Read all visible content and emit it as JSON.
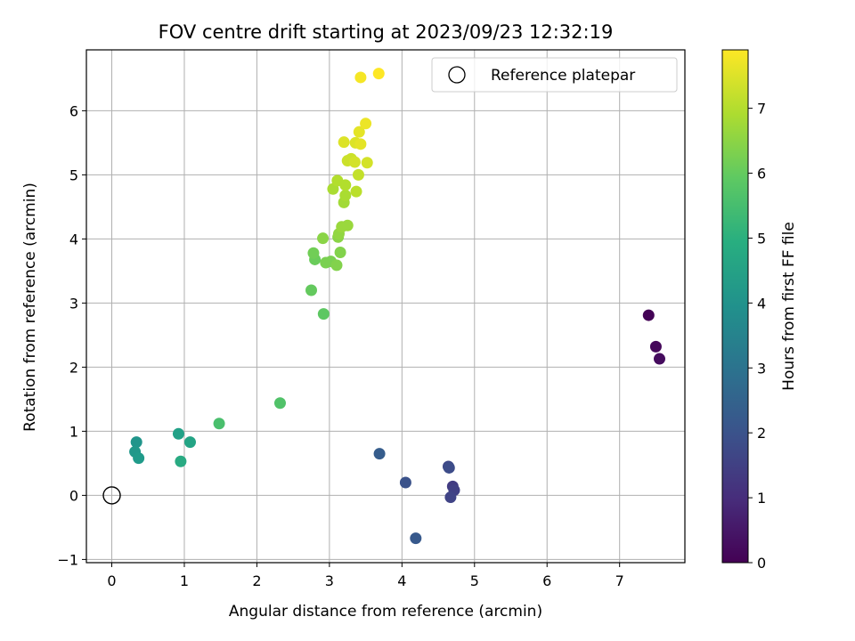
{
  "chart_data": {
    "type": "scatter",
    "title": "FOV centre drift starting at 2023/09/23 12:32:19",
    "xlabel": "Angular distance from reference (arcmin)",
    "ylabel": "Rotation from reference (arcmin)",
    "xlim": [
      -0.35,
      7.9
    ],
    "ylim": [
      -1.05,
      6.95
    ],
    "xticks": [
      0,
      1,
      2,
      3,
      4,
      5,
      6,
      7
    ],
    "yticks": [
      -1,
      0,
      1,
      2,
      3,
      4,
      5,
      6
    ],
    "grid": true,
    "legend": {
      "position": "top-right",
      "entries": [
        "Reference platepar"
      ]
    },
    "reference_point": {
      "x": 0,
      "y": 0,
      "marker": "hollow-circle",
      "label": "Reference platepar"
    },
    "colorbar": {
      "label": "Hours from first FF file",
      "colormap": "viridis",
      "range": [
        0,
        7.9
      ],
      "ticks": [
        0,
        1,
        2,
        3,
        4,
        5,
        6,
        7
      ]
    },
    "points": [
      {
        "x": 7.4,
        "y": 2.81,
        "c": 0.05
      },
      {
        "x": 7.5,
        "y": 2.32,
        "c": 0.15
      },
      {
        "x": 7.55,
        "y": 2.13,
        "c": 0.25
      },
      {
        "x": 4.7,
        "y": 0.14,
        "c": 1.4
      },
      {
        "x": 4.72,
        "y": 0.08,
        "c": 1.5
      },
      {
        "x": 4.67,
        "y": -0.03,
        "c": 1.6
      },
      {
        "x": 4.64,
        "y": 0.45,
        "c": 1.7
      },
      {
        "x": 4.65,
        "y": 0.43,
        "c": 1.8
      },
      {
        "x": 4.05,
        "y": 0.2,
        "c": 2.0
      },
      {
        "x": 4.19,
        "y": -0.67,
        "c": 2.2
      },
      {
        "x": 3.69,
        "y": 0.65,
        "c": 2.3
      },
      {
        "x": 0.34,
        "y": 0.83,
        "c": 4.1
      },
      {
        "x": 0.32,
        "y": 0.68,
        "c": 4.2
      },
      {
        "x": 0.37,
        "y": 0.58,
        "c": 4.3
      },
      {
        "x": 0.92,
        "y": 0.96,
        "c": 4.5
      },
      {
        "x": 1.08,
        "y": 0.83,
        "c": 4.6
      },
      {
        "x": 0.95,
        "y": 0.53,
        "c": 4.8
      },
      {
        "x": 1.48,
        "y": 1.12,
        "c": 5.6
      },
      {
        "x": 2.32,
        "y": 1.44,
        "c": 5.7
      },
      {
        "x": 2.92,
        "y": 2.83,
        "c": 5.9
      },
      {
        "x": 2.75,
        "y": 3.2,
        "c": 6.0
      },
      {
        "x": 2.8,
        "y": 3.68,
        "c": 6.1
      },
      {
        "x": 2.78,
        "y": 3.78,
        "c": 6.2
      },
      {
        "x": 2.95,
        "y": 3.63,
        "c": 6.3
      },
      {
        "x": 3.02,
        "y": 3.65,
        "c": 6.3
      },
      {
        "x": 3.1,
        "y": 3.59,
        "c": 6.4
      },
      {
        "x": 3.15,
        "y": 3.79,
        "c": 6.4
      },
      {
        "x": 2.91,
        "y": 4.01,
        "c": 6.5
      },
      {
        "x": 3.12,
        "y": 4.03,
        "c": 6.5
      },
      {
        "x": 3.13,
        "y": 4.08,
        "c": 6.6
      },
      {
        "x": 3.17,
        "y": 4.19,
        "c": 6.7
      },
      {
        "x": 3.25,
        "y": 4.21,
        "c": 6.7
      },
      {
        "x": 3.2,
        "y": 4.57,
        "c": 6.8
      },
      {
        "x": 3.22,
        "y": 4.68,
        "c": 6.9
      },
      {
        "x": 3.05,
        "y": 4.78,
        "c": 6.9
      },
      {
        "x": 3.11,
        "y": 4.91,
        "c": 7.0
      },
      {
        "x": 3.22,
        "y": 4.84,
        "c": 7.0
      },
      {
        "x": 3.37,
        "y": 4.74,
        "c": 7.1
      },
      {
        "x": 3.4,
        "y": 5.0,
        "c": 7.2
      },
      {
        "x": 3.25,
        "y": 5.22,
        "c": 7.3
      },
      {
        "x": 3.3,
        "y": 5.25,
        "c": 7.3
      },
      {
        "x": 3.35,
        "y": 5.2,
        "c": 7.4
      },
      {
        "x": 3.52,
        "y": 5.19,
        "c": 7.4
      },
      {
        "x": 3.2,
        "y": 5.51,
        "c": 7.5
      },
      {
        "x": 3.36,
        "y": 5.5,
        "c": 7.5
      },
      {
        "x": 3.43,
        "y": 5.48,
        "c": 7.6
      },
      {
        "x": 3.41,
        "y": 5.67,
        "c": 7.6
      },
      {
        "x": 3.5,
        "y": 5.8,
        "c": 7.7
      },
      {
        "x": 3.43,
        "y": 6.52,
        "c": 7.8
      },
      {
        "x": 3.68,
        "y": 6.58,
        "c": 7.9
      }
    ]
  }
}
